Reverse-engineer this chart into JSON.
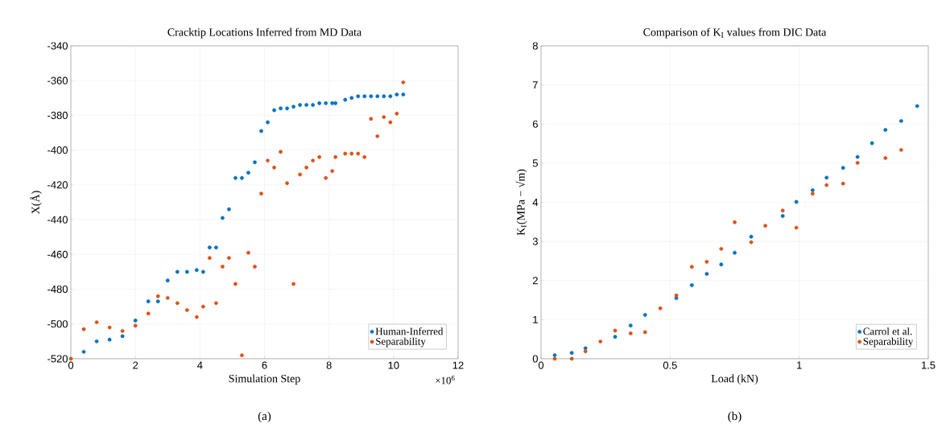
{
  "chart_data": [
    {
      "type": "scatter",
      "title": "Cracktip Locations Inferred from MD Data",
      "xlabel": "Simulation Step",
      "ylabel": "X(Å)",
      "annotations": [
        "×10$^{6}$",
        "(a)"
      ],
      "xlim": [
        0,
        12
      ],
      "xticks": [
        0,
        2,
        4,
        6,
        8,
        10,
        12
      ],
      "ylim": [
        -520,
        -340
      ],
      "yticks": [
        -520,
        -500,
        -480,
        -460,
        -440,
        -420,
        -400,
        -380,
        -360,
        -340
      ],
      "grid": true,
      "legend": "bottom right",
      "marker": "circle",
      "series": [
        {
          "name": "Human-Inferred",
          "color": "#0072bd",
          "x": [
            0.4,
            0.8,
            1.2,
            1.6,
            2.0,
            2.4,
            2.7,
            3.0,
            3.3,
            3.6,
            3.9,
            4.1,
            4.3,
            4.5,
            4.7,
            4.9,
            5.1,
            5.3,
            5.5,
            5.7,
            5.9,
            6.1,
            6.3,
            6.5,
            6.7,
            6.9,
            7.1,
            7.3,
            7.5,
            7.7,
            7.9,
            8.1,
            8.2,
            8.5,
            8.7,
            8.9,
            9.1,
            9.3,
            9.5,
            9.7,
            9.9,
            10.1,
            10.3
          ],
          "values": [
            -516,
            -510,
            -509,
            -507,
            -498,
            -487,
            -487,
            -475,
            -470,
            -470,
            -469,
            -470,
            -456,
            -456,
            -439,
            -434,
            -416,
            -416,
            -413,
            -407,
            -389,
            -384,
            -377,
            -376,
            -376,
            -375,
            -374,
            -374,
            -374,
            -373,
            -373,
            -373,
            -373,
            -371,
            -370,
            -369,
            -369,
            -369,
            -369,
            -369,
            -369,
            -368,
            -368
          ]
        },
        {
          "name": "Separability",
          "color": "#d95319",
          "x": [
            0,
            0.4,
            0.8,
            1.2,
            1.6,
            2.0,
            2.4,
            2.7,
            3.0,
            3.3,
            3.6,
            3.9,
            4.1,
            4.3,
            4.5,
            4.7,
            4.9,
            5.1,
            5.3,
            5.5,
            5.7,
            5.9,
            6.1,
            6.3,
            6.5,
            6.7,
            6.9,
            7.1,
            7.3,
            7.5,
            7.7,
            7.9,
            8.1,
            8.2,
            8.5,
            8.7,
            8.9,
            9.1,
            9.3,
            9.5,
            9.7,
            9.9,
            10.1,
            10.3
          ],
          "values": [
            -520,
            -503,
            -499,
            -502,
            -504,
            -501,
            -494,
            -484,
            -485,
            -488,
            -492,
            -496,
            -490,
            -462,
            -488,
            -467,
            -462,
            -477,
            -518,
            -459,
            -467,
            -425,
            -406,
            -410,
            -401,
            -419,
            -477,
            -414,
            -410,
            -406,
            -404,
            -416,
            -412,
            -404,
            -402,
            -402,
            -402,
            -404,
            -382,
            -392,
            -381,
            -384,
            -379,
            -361
          ]
        }
      ]
    },
    {
      "type": "scatter",
      "title": "Comparison of K$_{I}$ values from DIC Data",
      "xlabel": "Load (kN)",
      "ylabel": "K$_{I}$(MPa − √m)",
      "annotations": [
        "(b)"
      ],
      "xlim": [
        0,
        1.5
      ],
      "xticks": [
        0,
        0.5,
        1,
        1.5
      ],
      "ylim": [
        0,
        8
      ],
      "yticks": [
        0,
        1,
        2,
        3,
        4,
        5,
        6,
        7,
        8
      ],
      "grid": true,
      "legend": "bottom right",
      "marker": "circle",
      "series": [
        {
          "name": "Carrol et al.",
          "color": "#0072bd",
          "x": [
            0.053,
            0.119,
            0.172,
            0.23,
            0.287,
            0.347,
            0.403,
            0.524,
            0.584,
            0.642,
            0.698,
            0.75,
            0.814,
            0.869,
            0.936,
            0.989,
            1.052,
            1.106,
            1.17,
            1.226,
            1.282,
            1.334,
            1.395,
            1.457
          ],
          "values": [
            0.09,
            0.15,
            0.27,
            null,
            0.56,
            0.85,
            1.12,
            1.55,
            1.88,
            2.17,
            2.41,
            2.71,
            3.12,
            null,
            3.65,
            4.01,
            4.31,
            4.63,
            4.88,
            5.16,
            5.51,
            5.85,
            6.08,
            6.46
          ]
        },
        {
          "name": "Separability",
          "color": "#d95319",
          "x": [
            0.053,
            0.119,
            0.172,
            0.23,
            0.287,
            0.347,
            0.403,
            0.462,
            0.524,
            0.584,
            0.642,
            0.698,
            0.75,
            0.814,
            0.869,
            0.936,
            0.989,
            1.052,
            1.106,
            1.17,
            1.226,
            1.334,
            1.395
          ],
          "values": [
            0,
            0,
            0.19,
            0.44,
            0.72,
            0.65,
            0.68,
            1.29,
            1.62,
            2.35,
            2.48,
            2.81,
            3.49,
            2.98,
            3.4,
            3.79,
            3.35,
            4.22,
            4.44,
            4.48,
            5.01,
            5.13,
            5.34
          ]
        }
      ]
    }
  ]
}
